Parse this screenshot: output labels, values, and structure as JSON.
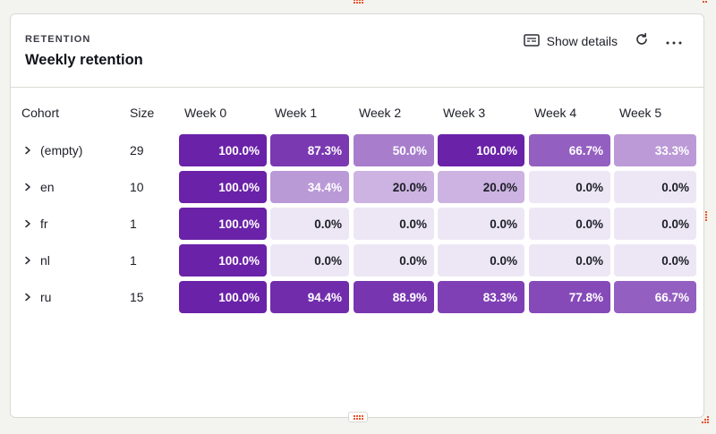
{
  "card": {
    "eyebrow": "RETENTION",
    "title": "Weekly retention",
    "show_details_label": "Show details",
    "icons": {
      "details": "details-card-icon",
      "refresh": "refresh-icon",
      "more": "more-horizontal-icon"
    }
  },
  "table": {
    "headers": {
      "cohort": "Cohort",
      "size": "Size",
      "weeks": [
        "Week 0",
        "Week 1",
        "Week 2",
        "Week 3",
        "Week 4",
        "Week 5"
      ]
    },
    "rows": [
      {
        "label": "(empty)",
        "size": "29",
        "values": [
          "100.0%",
          "87.3%",
          "50.0%",
          "100.0%",
          "66.7%",
          "33.3%"
        ]
      },
      {
        "label": "en",
        "size": "10",
        "values": [
          "100.0%",
          "34.4%",
          "20.0%",
          "20.0%",
          "0.0%",
          "0.0%"
        ]
      },
      {
        "label": "fr",
        "size": "1",
        "values": [
          "100.0%",
          "0.0%",
          "0.0%",
          "0.0%",
          "0.0%",
          "0.0%"
        ]
      },
      {
        "label": "nl",
        "size": "1",
        "values": [
          "100.0%",
          "0.0%",
          "0.0%",
          "0.0%",
          "0.0%",
          "0.0%"
        ]
      },
      {
        "label": "ru",
        "size": "15",
        "values": [
          "100.0%",
          "94.4%",
          "88.9%",
          "83.3%",
          "77.8%",
          "66.7%"
        ]
      }
    ]
  },
  "colors": {
    "accent": "#6a22a8",
    "zero_cell": "#ede7f5",
    "card_border": "#d9d9d4",
    "resize_handle": "#e8542a"
  }
}
